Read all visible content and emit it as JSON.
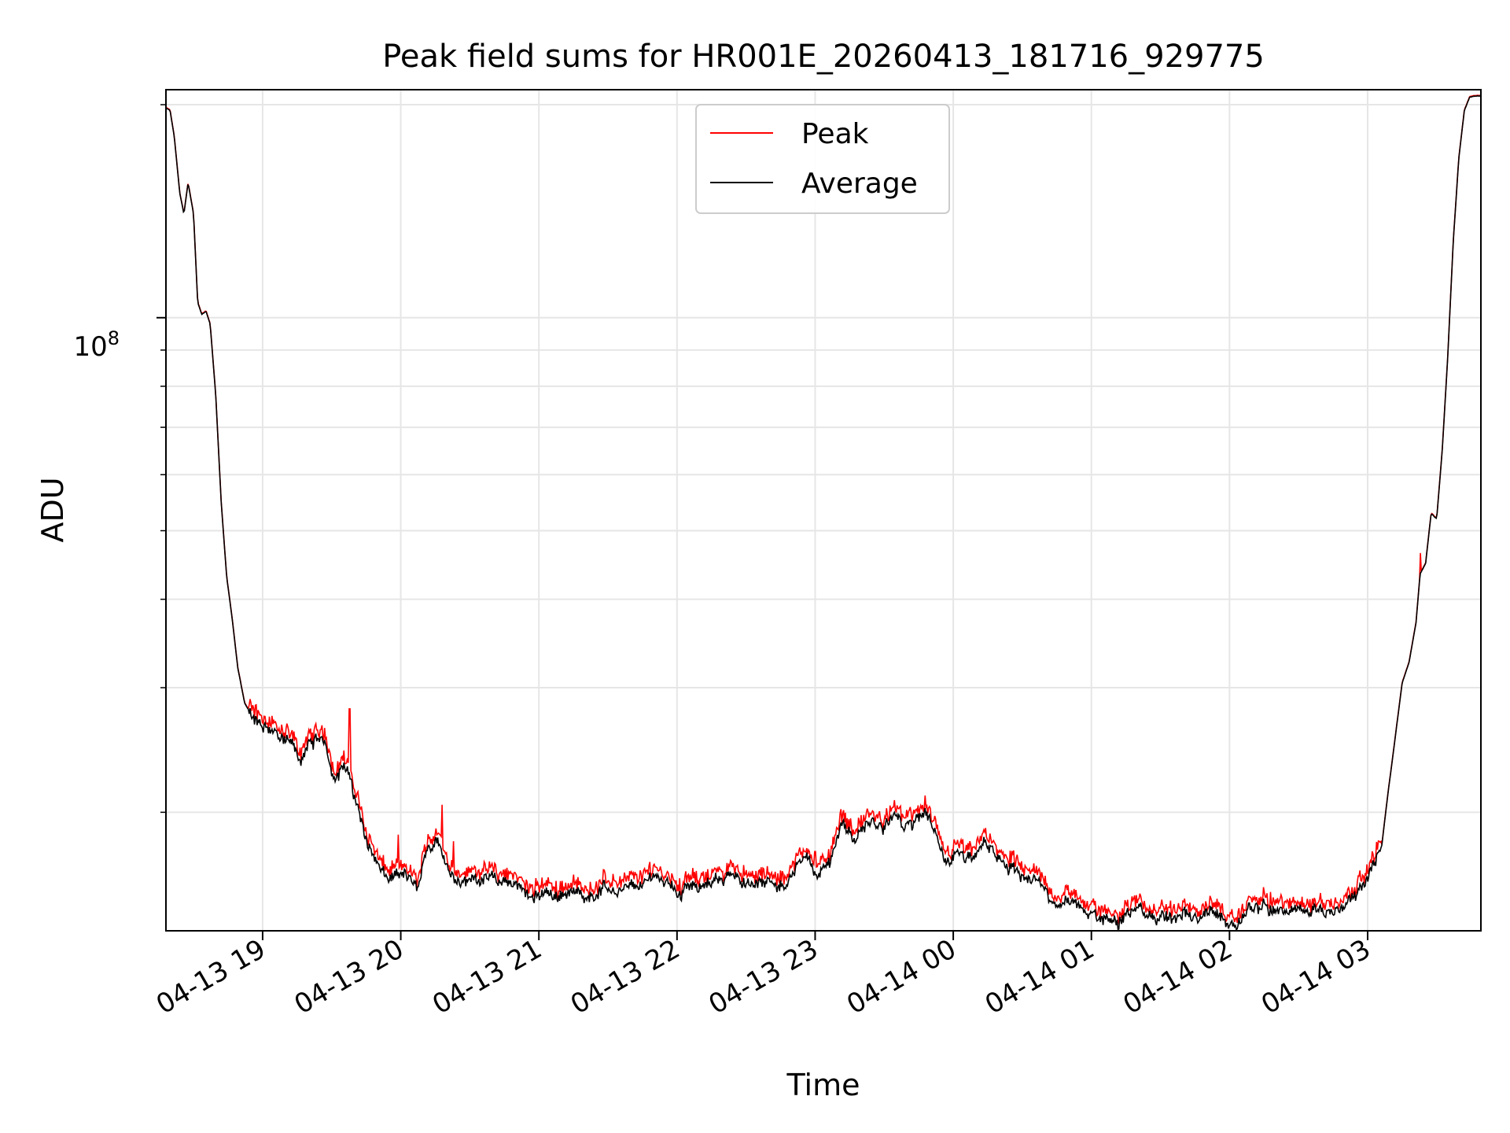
{
  "chart_data": {
    "type": "line",
    "title": "Peak field sums for HR001E_20260413_181716_929775",
    "xlabel": "Time",
    "ylabel": "ADU",
    "yscale": "log",
    "ylim": [
      13600000,
      210000000
    ],
    "xlim_hours": [
      18.3,
      27.82
    ],
    "grid": true,
    "legend_position": "upper-center",
    "ytick_label": {
      "base": "10",
      "exp": "8"
    },
    "xtick_labels": [
      "04-13 19",
      "04-13 20",
      "04-13 21",
      "04-13 22",
      "04-13 23",
      "04-14 00",
      "04-14 01",
      "04-14 02",
      "04-14 03"
    ],
    "xtick_hours": [
      19,
      20,
      21,
      22,
      23,
      24,
      25,
      26,
      27
    ],
    "series": [
      {
        "name": "Peak",
        "color": "#ff0000"
      },
      {
        "name": "Average",
        "color": "#000000"
      }
    ],
    "average_profile": [
      [
        18.3,
        198000000
      ],
      [
        18.33,
        196000000
      ],
      [
        18.36,
        180000000
      ],
      [
        18.4,
        150000000
      ],
      [
        18.43,
        140000000
      ],
      [
        18.46,
        155000000
      ],
      [
        18.5,
        140000000
      ],
      [
        18.53,
        105000000
      ],
      [
        18.56,
        101000000
      ],
      [
        18.59,
        102000000
      ],
      [
        18.62,
        98000000
      ],
      [
        18.66,
        78000000
      ],
      [
        18.7,
        55000000
      ],
      [
        18.74,
        43000000
      ],
      [
        18.78,
        37500000
      ],
      [
        18.82,
        32000000
      ],
      [
        18.87,
        28500000
      ],
      [
        18.92,
        27400000
      ],
      [
        19.0,
        26200000
      ],
      [
        19.1,
        25600000
      ],
      [
        19.2,
        24900000
      ],
      [
        19.27,
        23700000
      ],
      [
        19.35,
        25300000
      ],
      [
        19.45,
        24800000
      ],
      [
        19.52,
        22600000
      ],
      [
        19.58,
        23400000
      ],
      [
        19.64,
        22000000
      ],
      [
        19.72,
        19300000
      ],
      [
        19.8,
        17600000
      ],
      [
        19.87,
        16400000
      ],
      [
        19.95,
        16100000
      ],
      [
        20.05,
        16000000
      ],
      [
        20.12,
        15500000
      ],
      [
        20.2,
        17700000
      ],
      [
        20.28,
        18500000
      ],
      [
        20.35,
        16800000
      ],
      [
        20.45,
        15800000
      ],
      [
        20.6,
        16300000
      ],
      [
        20.8,
        15800000
      ],
      [
        21.0,
        15400000
      ],
      [
        21.2,
        15300000
      ],
      [
        21.4,
        15400000
      ],
      [
        21.6,
        15600000
      ],
      [
        21.75,
        15800000
      ],
      [
        21.85,
        16300000
      ],
      [
        22.0,
        15500000
      ],
      [
        22.2,
        15900000
      ],
      [
        22.4,
        16400000
      ],
      [
        22.55,
        15700000
      ],
      [
        22.8,
        16000000
      ],
      [
        22.95,
        17700000
      ],
      [
        23.0,
        16200000
      ],
      [
        23.1,
        17000000
      ],
      [
        23.2,
        19100000
      ],
      [
        23.3,
        18200000
      ],
      [
        23.4,
        19200000
      ],
      [
        23.5,
        19400000
      ],
      [
        23.6,
        19400000
      ],
      [
        23.7,
        19200000
      ],
      [
        23.8,
        19900000
      ],
      [
        23.88,
        18000000
      ],
      [
        23.95,
        17200000
      ],
      [
        24.05,
        17700000
      ],
      [
        24.15,
        17200000
      ],
      [
        24.22,
        18400000
      ],
      [
        24.32,
        17100000
      ],
      [
        24.45,
        16600000
      ],
      [
        24.6,
        15900000
      ],
      [
        24.75,
        15000000
      ],
      [
        24.9,
        14800000
      ],
      [
        25.0,
        14300000
      ],
      [
        25.15,
        14100000
      ],
      [
        25.3,
        14500000
      ],
      [
        25.45,
        14200000
      ],
      [
        25.6,
        14200000
      ],
      [
        25.75,
        14100000
      ],
      [
        25.85,
        14400000
      ],
      [
        25.95,
        14000000
      ],
      [
        26.05,
        13800000
      ],
      [
        26.15,
        14700000
      ],
      [
        26.3,
        14600000
      ],
      [
        26.45,
        14400000
      ],
      [
        26.6,
        14400000
      ],
      [
        26.75,
        14600000
      ],
      [
        26.9,
        15300000
      ],
      [
        27.0,
        16100000
      ],
      [
        27.1,
        17800000
      ],
      [
        27.15,
        21500000
      ],
      [
        27.2,
        25500000
      ],
      [
        27.25,
        30500000
      ],
      [
        27.3,
        32500000
      ],
      [
        27.35,
        37000000
      ],
      [
        27.38,
        43500000
      ],
      [
        27.42,
        45000000
      ],
      [
        27.46,
        53000000
      ],
      [
        27.5,
        52000000
      ],
      [
        27.54,
        65000000
      ],
      [
        27.58,
        88000000
      ],
      [
        27.62,
        128000000
      ],
      [
        27.66,
        168000000
      ],
      [
        27.7,
        196000000
      ],
      [
        27.74,
        205000000
      ],
      [
        27.82,
        206000000
      ]
    ],
    "peak_spikes": [
      [
        19.63,
        28000000
      ],
      [
        19.98,
        18600000
      ],
      [
        20.3,
        20500000
      ],
      [
        20.38,
        18200000
      ],
      [
        23.0,
        17600000
      ],
      [
        27.38,
        46500000
      ]
    ]
  }
}
